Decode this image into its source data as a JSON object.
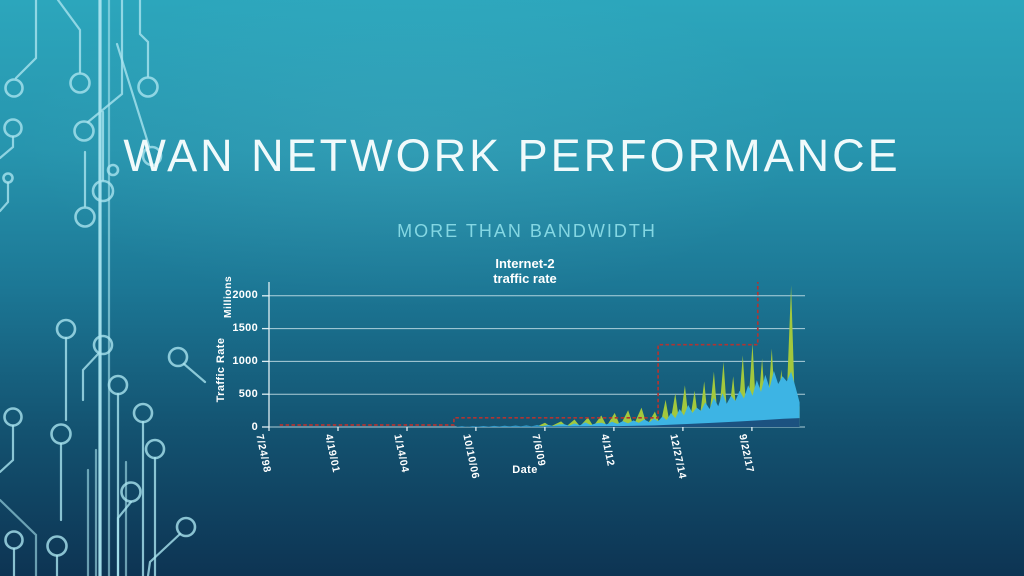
{
  "slide": {
    "title": "WAN NETWORK PERFORMANCE",
    "subtitle": "MORE THAN BANDWIDTH"
  },
  "colors": {
    "background_top": "#2ca6bc",
    "background_bottom": "#0d3453",
    "title_text": "#f0fafb",
    "subtitle_text": "#84d7e3",
    "chart_text": "#ffffff",
    "gridline": "#d9eef3",
    "circuit_lines": "#a9e4ef",
    "series_cyan": "#3db4e4",
    "series_green": "#a2c83d",
    "series_dark_blue": "#1c5280",
    "capacity_red": "#b03432"
  },
  "chart_data": {
    "type": "area",
    "title": "Internet-2 traffic rate",
    "title_line1": "Internet-2",
    "title_line2": "traffic rate",
    "xlabel": "Date",
    "ylabel": "Traffic Rate",
    "y_units_label": "Millions",
    "ylim": [
      0,
      2210
    ],
    "y_ticks": [
      0,
      500,
      1000,
      1500,
      2000
    ],
    "x_ticks": [
      "7/24/98",
      "4/19/01",
      "1/14/04",
      "10/10/06",
      "7/6/09",
      "4/1/12",
      "12/27/14",
      "9/22/17"
    ],
    "x_tick_spacing_frac": 0.1287,
    "grid": true,
    "legend_position": "none",
    "series": [
      {
        "name": "traffic-peaks-green",
        "type": "area",
        "color": "#a2c83d",
        "points": [
          [
            0.35,
            2
          ],
          [
            0.4,
            4
          ],
          [
            0.45,
            6
          ],
          [
            0.5,
            9
          ],
          [
            0.515,
            65
          ],
          [
            0.525,
            8
          ],
          [
            0.545,
            85
          ],
          [
            0.555,
            10
          ],
          [
            0.57,
            115
          ],
          [
            0.58,
            12
          ],
          [
            0.595,
            145
          ],
          [
            0.605,
            14
          ],
          [
            0.62,
            175
          ],
          [
            0.63,
            16
          ],
          [
            0.645,
            215
          ],
          [
            0.655,
            18
          ],
          [
            0.67,
            255
          ],
          [
            0.68,
            20
          ],
          [
            0.695,
            295
          ],
          [
            0.705,
            24
          ],
          [
            0.72,
            235
          ],
          [
            0.73,
            28
          ],
          [
            0.74,
            415
          ],
          [
            0.748,
            30
          ],
          [
            0.758,
            515
          ],
          [
            0.766,
            32
          ],
          [
            0.776,
            635
          ],
          [
            0.784,
            35
          ],
          [
            0.794,
            555
          ],
          [
            0.802,
            38
          ],
          [
            0.812,
            695
          ],
          [
            0.82,
            40
          ],
          [
            0.83,
            845
          ],
          [
            0.838,
            42
          ],
          [
            0.848,
            995
          ],
          [
            0.856,
            45
          ],
          [
            0.866,
            775
          ],
          [
            0.874,
            48
          ],
          [
            0.884,
            1095
          ],
          [
            0.892,
            50
          ],
          [
            0.902,
            1275
          ],
          [
            0.91,
            55
          ],
          [
            0.92,
            1045
          ],
          [
            0.928,
            58
          ],
          [
            0.938,
            1195
          ],
          [
            0.946,
            60
          ],
          [
            0.956,
            875
          ],
          [
            0.964,
            65
          ],
          [
            0.974,
            2160
          ],
          [
            0.982,
            70
          ],
          [
            0.99,
            315
          ]
        ]
      },
      {
        "name": "traffic-cyan",
        "type": "area",
        "color": "#3db4e4",
        "points": [
          [
            0.35,
            6
          ],
          [
            0.36,
            13
          ],
          [
            0.37,
            5
          ],
          [
            0.38,
            14
          ],
          [
            0.39,
            7
          ],
          [
            0.4,
            15
          ],
          [
            0.41,
            8
          ],
          [
            0.42,
            17
          ],
          [
            0.43,
            9
          ],
          [
            0.44,
            19
          ],
          [
            0.45,
            10
          ],
          [
            0.46,
            21
          ],
          [
            0.47,
            11
          ],
          [
            0.48,
            23
          ],
          [
            0.49,
            12
          ],
          [
            0.5,
            26
          ],
          [
            0.51,
            14
          ],
          [
            0.52,
            32
          ],
          [
            0.53,
            15
          ],
          [
            0.54,
            38
          ],
          [
            0.55,
            44
          ],
          [
            0.56,
            20
          ],
          [
            0.57,
            55
          ],
          [
            0.58,
            24
          ],
          [
            0.59,
            70
          ],
          [
            0.6,
            30
          ],
          [
            0.61,
            55
          ],
          [
            0.62,
            65
          ],
          [
            0.63,
            40
          ],
          [
            0.64,
            80
          ],
          [
            0.65,
            48
          ],
          [
            0.66,
            90
          ],
          [
            0.67,
            55
          ],
          [
            0.68,
            100
          ],
          [
            0.69,
            62
          ],
          [
            0.7,
            115
          ],
          [
            0.71,
            72
          ],
          [
            0.718,
            130
          ],
          [
            0.726,
            88
          ],
          [
            0.734,
            160
          ],
          [
            0.742,
            105
          ],
          [
            0.75,
            215
          ],
          [
            0.758,
            135
          ],
          [
            0.766,
            275
          ],
          [
            0.774,
            175
          ],
          [
            0.782,
            335
          ],
          [
            0.79,
            215
          ],
          [
            0.798,
            295
          ],
          [
            0.806,
            245
          ],
          [
            0.814,
            375
          ],
          [
            0.822,
            275
          ],
          [
            0.83,
            445
          ],
          [
            0.838,
            315
          ],
          [
            0.846,
            515
          ],
          [
            0.854,
            355
          ],
          [
            0.862,
            475
          ],
          [
            0.87,
            395
          ],
          [
            0.878,
            555
          ],
          [
            0.886,
            435
          ],
          [
            0.894,
            635
          ],
          [
            0.902,
            475
          ],
          [
            0.91,
            715
          ],
          [
            0.918,
            535
          ],
          [
            0.926,
            795
          ],
          [
            0.934,
            595
          ],
          [
            0.942,
            855
          ],
          [
            0.95,
            655
          ],
          [
            0.958,
            775
          ],
          [
            0.966,
            695
          ],
          [
            0.974,
            845
          ],
          [
            0.982,
            615
          ],
          [
            0.99,
            375
          ]
        ]
      },
      {
        "name": "traffic-dark-blue",
        "type": "area",
        "color": "#1c5280",
        "points": [
          [
            0.35,
            3
          ],
          [
            0.45,
            5
          ],
          [
            0.55,
            8
          ],
          [
            0.65,
            14
          ],
          [
            0.72,
            25
          ],
          [
            0.78,
            45
          ],
          [
            0.83,
            65
          ],
          [
            0.88,
            85
          ],
          [
            0.92,
            105
          ],
          [
            0.96,
            125
          ],
          [
            0.99,
            135
          ]
        ]
      },
      {
        "name": "capacity-step-line",
        "type": "line",
        "style": "dashed",
        "color": "#b03432",
        "points": [
          [
            0.02,
            30
          ],
          [
            0.345,
            30
          ],
          [
            0.345,
            140
          ],
          [
            0.726,
            140
          ],
          [
            0.726,
            1255
          ],
          [
            0.912,
            1255
          ],
          [
            0.912,
            2210
          ]
        ]
      }
    ]
  }
}
